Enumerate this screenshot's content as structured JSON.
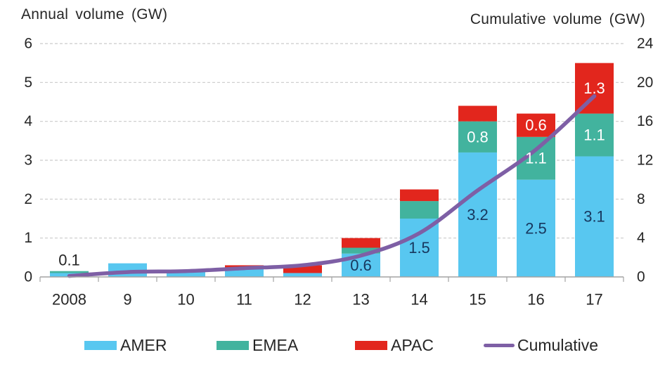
{
  "colors": {
    "amer": "#58C7F0",
    "emea": "#42B39E",
    "apac": "#E2261D",
    "cumulative": "#7E5FA5",
    "gridline": "#C9C9C9",
    "axis": "#A3A3A3",
    "text": "#262626",
    "bar_label_dark": "#17375E",
    "bar_label_light": "#FFFFFF"
  },
  "legend": [
    {
      "label": "AMER",
      "color": "#58C7F0",
      "type": "box"
    },
    {
      "label": "EMEA",
      "color": "#42B39E",
      "type": "box"
    },
    {
      "label": "APAC",
      "color": "#E2261D",
      "type": "box"
    },
    {
      "label": "Cumulative",
      "color": "#7E5FA5",
      "type": "line"
    }
  ],
  "chart_data": {
    "type": "bar",
    "subtype": "stacked-bars-with-line-overlay",
    "title": "",
    "categories": [
      "2008",
      "9",
      "10",
      "11",
      "12",
      "13",
      "14",
      "15",
      "16",
      "17"
    ],
    "series": [
      {
        "name": "AMER",
        "type": "bar",
        "axis": "left",
        "color": "#58C7F0",
        "values": [
          0.1,
          0.35,
          0.15,
          0.2,
          0.1,
          0.6,
          1.5,
          3.2,
          2.5,
          3.1
        ]
      },
      {
        "name": "EMEA",
        "type": "bar",
        "axis": "left",
        "color": "#42B39E",
        "values": [
          0.05,
          0,
          0,
          0,
          0,
          0.15,
          0.45,
          0.8,
          1.1,
          1.1
        ]
      },
      {
        "name": "APAC",
        "type": "bar",
        "axis": "left",
        "color": "#E2261D",
        "values": [
          0,
          0,
          0,
          0.1,
          0.2,
          0.25,
          0.3,
          0.4,
          0.6,
          1.3
        ]
      },
      {
        "name": "Cumulative",
        "type": "line",
        "axis": "right",
        "color": "#7E5FA5",
        "values": [
          0.1,
          0.5,
          0.6,
          0.9,
          1.2,
          2.2,
          4.5,
          8.9,
          13.1,
          18.6
        ]
      }
    ],
    "left_axis": {
      "title": "Annual volume (GW)",
      "range": [
        0,
        6
      ],
      "ticks": [
        0,
        1,
        2,
        3,
        4,
        5,
        6
      ]
    },
    "right_axis": {
      "title": "Cumulative volume (GW)",
      "range": [
        0,
        24
      ],
      "ticks": [
        0,
        4,
        8,
        12,
        16,
        20,
        24
      ]
    },
    "grid": "horizontal-dashed",
    "legend_position": "bottom",
    "bar_labels": [
      {
        "category": "2008",
        "series": "AMER",
        "text": "0.1",
        "position": "above",
        "color": "#262626"
      },
      {
        "category": "13",
        "series": "AMER",
        "text": "0.6",
        "position": "inside",
        "color": "#17375E"
      },
      {
        "category": "14",
        "series": "AMER",
        "text": "1.5",
        "position": "inside",
        "color": "#17375E"
      },
      {
        "category": "15",
        "series": "AMER",
        "text": "3.2",
        "position": "inside",
        "color": "#17375E"
      },
      {
        "category": "15",
        "series": "EMEA",
        "text": "0.8",
        "position": "inside",
        "color": "#FFFFFF"
      },
      {
        "category": "16",
        "series": "AMER",
        "text": "2.5",
        "position": "inside",
        "color": "#17375E"
      },
      {
        "category": "16",
        "series": "EMEA",
        "text": "1.1",
        "position": "inside",
        "color": "#FFFFFF"
      },
      {
        "category": "16",
        "series": "APAC",
        "text": "0.6",
        "position": "inside",
        "color": "#FFFFFF"
      },
      {
        "category": "17",
        "series": "AMER",
        "text": "3.1",
        "position": "inside",
        "color": "#17375E"
      },
      {
        "category": "17",
        "series": "EMEA",
        "text": "1.1",
        "position": "inside",
        "color": "#FFFFFF"
      },
      {
        "category": "17",
        "series": "APAC",
        "text": "1.3",
        "position": "inside",
        "color": "#FFFFFF"
      }
    ]
  }
}
